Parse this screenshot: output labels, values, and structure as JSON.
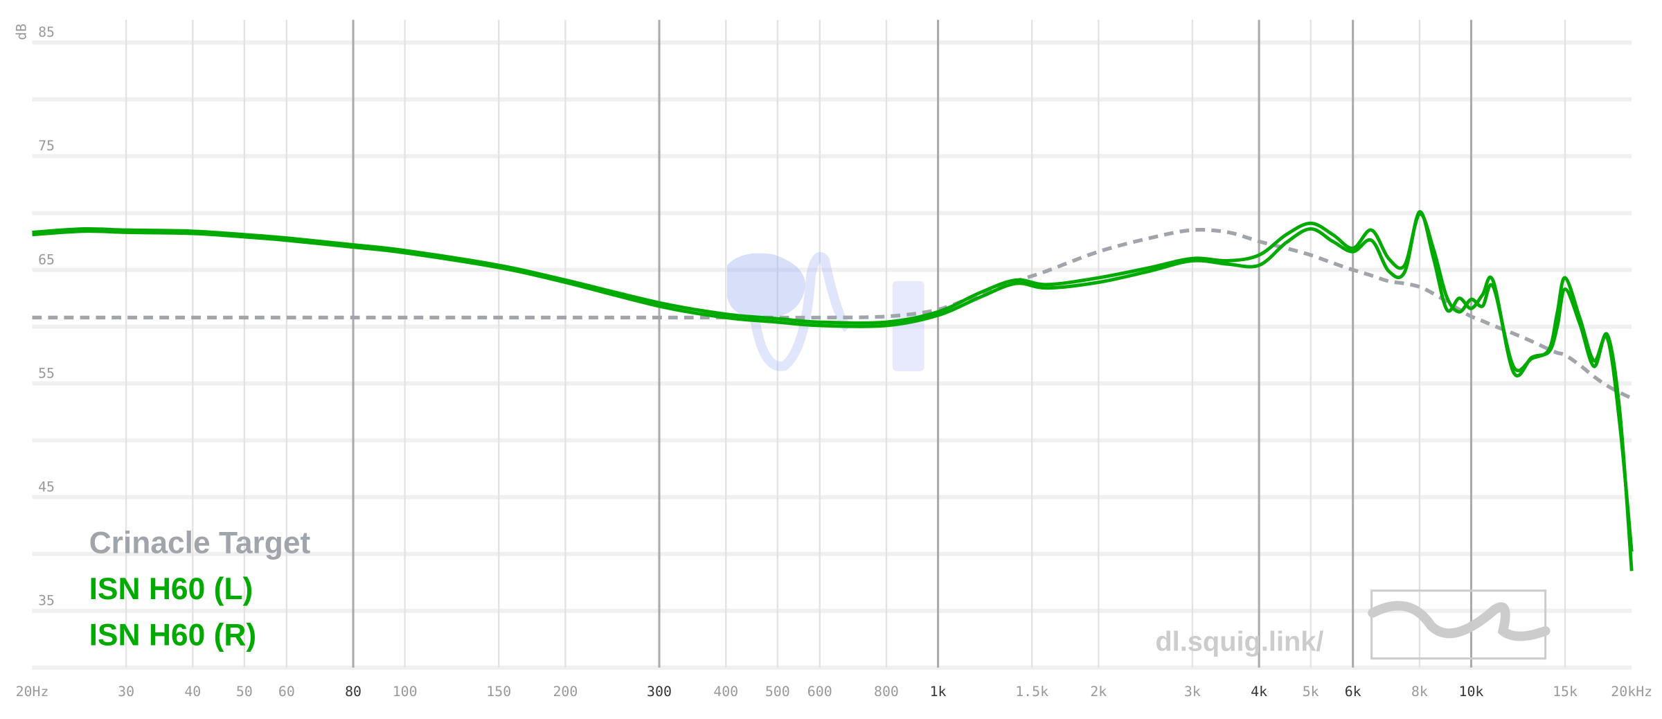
{
  "chart_data": {
    "type": "line",
    "ylabel": "dB",
    "xscale": "log",
    "xlim": [
      20,
      20000
    ],
    "ylim": [
      30,
      87
    ],
    "yticks": [
      35,
      45,
      55,
      65,
      75,
      85
    ],
    "yminorticks": [
      30,
      40,
      50,
      60,
      70,
      80
    ],
    "xticks": [
      {
        "value": 20,
        "label": "20Hz"
      },
      30,
      40,
      50,
      60,
      80,
      100,
      150,
      200,
      300,
      400,
      500,
      600,
      800,
      {
        "value": 1000,
        "label": "1k"
      },
      {
        "value": 1500,
        "label": "1.5k"
      },
      {
        "value": 2000,
        "label": "2k"
      },
      {
        "value": 3000,
        "label": "3k"
      },
      {
        "value": 4000,
        "label": "4k"
      },
      {
        "value": 5000,
        "label": "5k"
      },
      {
        "value": 6000,
        "label": "6k"
      },
      {
        "value": 8000,
        "label": "8k"
      },
      {
        "value": 10000,
        "label": "10k"
      },
      {
        "value": 15000,
        "label": "15k"
      },
      {
        "value": 20000,
        "label": "20kHz"
      }
    ],
    "xmajorticks": [
      80,
      300,
      1000,
      4000,
      6000,
      10000
    ],
    "grid": true,
    "legend": "lower left",
    "x": [
      20,
      25,
      30,
      40,
      50,
      60,
      80,
      100,
      150,
      200,
      300,
      400,
      500,
      600,
      800,
      1000,
      1200,
      1400,
      1600,
      2000,
      2500,
      3000,
      3500,
      4000,
      4500,
      5000,
      5500,
      6000,
      6500,
      7000,
      7500,
      8000,
      8500,
      9000,
      9500,
      10000,
      10500,
      11000,
      12000,
      13000,
      14000,
      14500,
      15000,
      16000,
      17000,
      18000,
      19000,
      20000
    ],
    "series": [
      {
        "name": "Crinacle Target",
        "color": "#a0a4ab",
        "dashed": true,
        "values": [
          60.8,
          60.8,
          60.8,
          60.8,
          60.8,
          60.8,
          60.8,
          60.8,
          60.8,
          60.8,
          60.8,
          60.8,
          60.8,
          60.8,
          60.9,
          61.5,
          62.9,
          64.0,
          64.9,
          66.6,
          67.8,
          68.5,
          68.3,
          67.5,
          66.9,
          66.3,
          65.6,
          65.0,
          64.5,
          64.0,
          63.8,
          63.5,
          62.9,
          62.2,
          61.5,
          60.9,
          60.5,
          60.1,
          59.4,
          58.7,
          58.0,
          57.7,
          57.5,
          56.6,
          55.6,
          54.8,
          54.2,
          53.7
        ]
      },
      {
        "name": "ISN H60 (L)",
        "color": "#00aa00",
        "values": [
          68.3,
          68.6,
          68.5,
          68.4,
          68.1,
          67.8,
          67.2,
          66.7,
          65.4,
          64.1,
          62.1,
          61.1,
          60.7,
          60.4,
          60.4,
          61.3,
          63.0,
          64.1,
          63.7,
          64.3,
          65.2,
          66.0,
          65.8,
          66.3,
          68.1,
          69.1,
          68.1,
          66.9,
          68.5,
          66.0,
          65.4,
          69.9,
          66.8,
          62.6,
          61.3,
          62.4,
          61.8,
          63.5,
          56.5,
          57.2,
          58.0,
          61.2,
          64.3,
          60.7,
          57.0,
          59.0,
          51.4,
          40.2
        ]
      },
      {
        "name": "ISN H60 (R)",
        "color": "#00aa00",
        "values": [
          68.1,
          68.4,
          68.3,
          68.2,
          67.9,
          67.6,
          67.0,
          66.5,
          65.2,
          63.9,
          61.8,
          60.8,
          60.4,
          60.1,
          60.1,
          61.0,
          62.6,
          63.8,
          63.4,
          63.9,
          64.9,
          65.8,
          65.5,
          65.4,
          67.4,
          68.6,
          67.5,
          66.6,
          67.6,
          64.9,
          64.8,
          70.1,
          66.0,
          61.5,
          62.5,
          61.6,
          62.8,
          64.0,
          56.0,
          57.3,
          57.8,
          60.0,
          63.3,
          60.2,
          56.5,
          59.3,
          52.5,
          38.5
        ]
      }
    ]
  },
  "watermark": "dl.squig.link/"
}
